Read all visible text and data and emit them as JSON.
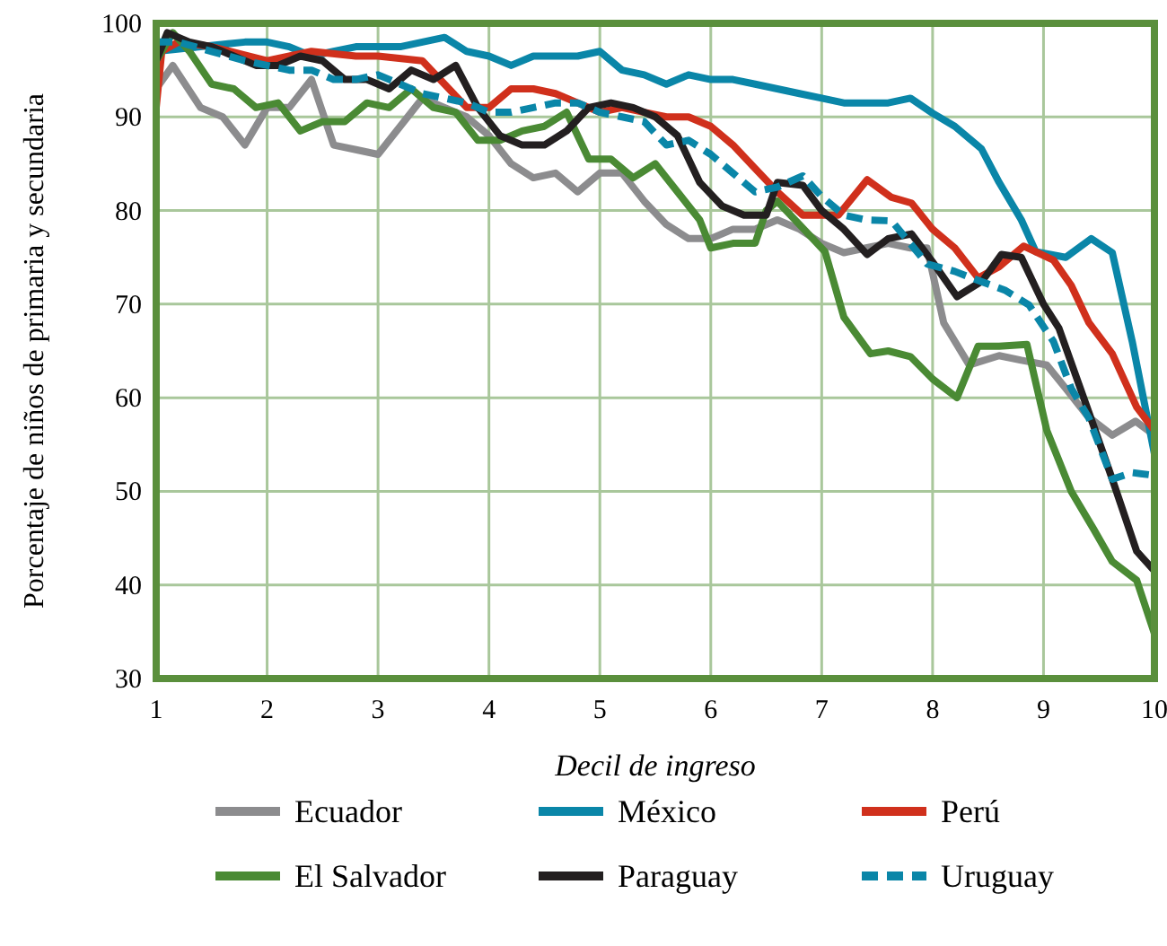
{
  "chart_data": {
    "type": "line",
    "xlabel": "Decil de ingreso",
    "ylabel": "Porcentaje de niños de primaria y secundaria",
    "xlim": [
      1,
      10
    ],
    "xticks": [
      1,
      2,
      3,
      4,
      5,
      6,
      7,
      8,
      9,
      10
    ],
    "ylim": [
      30,
      100
    ],
    "yticks": [
      30,
      40,
      50,
      60,
      70,
      80,
      90,
      100
    ],
    "grid": true,
    "legend": "bottom",
    "marker": "none",
    "series": [
      {
        "name": "Ecuador",
        "color": "#8c8c8e",
        "line_style": "solid",
        "x": [
          1,
          1.15,
          1.4,
          1.6,
          1.8,
          2.0,
          2.2,
          2.4,
          2.6,
          2.8,
          3.0,
          3.2,
          3.4,
          3.6,
          3.8,
          4.0,
          4.2,
          4.4,
          4.6,
          4.8,
          5.0,
          5.2,
          5.4,
          5.6,
          5.8,
          6.0,
          6.2,
          6.4,
          6.6,
          6.8,
          7.0,
          7.2,
          7.4,
          7.6,
          7.8,
          7.95,
          8.1,
          8.33,
          8.6,
          8.8,
          9.03,
          9.2,
          9.4,
          9.62,
          9.83,
          10
        ],
        "values": [
          93,
          95.5,
          91,
          90,
          87,
          91,
          91,
          94,
          87,
          86.5,
          86,
          89,
          92,
          91,
          90,
          88,
          85,
          83.5,
          84,
          82,
          84,
          84,
          81,
          78.5,
          77,
          77,
          78,
          78,
          79,
          78,
          76.5,
          75.5,
          76,
          76.5,
          76,
          76,
          68,
          63.5,
          64.5,
          64,
          63.5,
          61,
          58,
          56,
          57.5,
          56
        ]
      },
      {
        "name": "México",
        "color": "#0a86a8",
        "line_style": "solid",
        "x": [
          1,
          1.4,
          1.8,
          2.0,
          2.2,
          2.4,
          2.6,
          2.8,
          3.0,
          3.2,
          3.4,
          3.6,
          3.8,
          4.0,
          4.2,
          4.4,
          4.6,
          4.8,
          5.0,
          5.2,
          5.4,
          5.6,
          5.8,
          6.0,
          6.2,
          6.4,
          6.6,
          6.8,
          7.0,
          7.2,
          7.4,
          7.6,
          7.8,
          8.0,
          8.2,
          8.44,
          8.6,
          8.8,
          8.93,
          9.2,
          9.43,
          9.62,
          9.8,
          10
        ],
        "values": [
          97,
          97.5,
          98,
          98,
          97.5,
          96.5,
          97,
          97.5,
          97.5,
          97.5,
          98,
          98.5,
          97,
          96.5,
          95.5,
          96.5,
          96.5,
          96.5,
          97,
          95,
          94.5,
          93.5,
          94.5,
          94,
          94,
          93.5,
          93,
          92.5,
          92,
          91.5,
          91.5,
          91.5,
          92,
          90.4,
          89,
          86.6,
          83,
          79,
          75.6,
          75,
          77,
          75.5,
          66,
          54
        ]
      },
      {
        "name": "Perú",
        "color": "#d0301c",
        "line_style": "solid",
        "x": [
          1,
          1.05,
          1.2,
          1.5,
          2.0,
          2.4,
          2.8,
          3.0,
          3.4,
          3.8,
          4.0,
          4.2,
          4.4,
          4.6,
          4.8,
          5.0,
          5.2,
          5.4,
          5.6,
          5.8,
          6.0,
          6.2,
          6.4,
          6.6,
          6.83,
          7.15,
          7.41,
          7.63,
          7.81,
          8.0,
          8.2,
          8.41,
          8.6,
          8.82,
          9.09,
          9.25,
          9.41,
          9.62,
          9.84,
          10
        ],
        "values": [
          91,
          97,
          98,
          97.5,
          96,
          97,
          96.5,
          96.5,
          96,
          91,
          91,
          93,
          93,
          92.5,
          91.5,
          90.5,
          91,
          90.5,
          90,
          90,
          89,
          87,
          84.5,
          82,
          79.5,
          79.5,
          83.3,
          81.4,
          80.8,
          78,
          76,
          72.8,
          74,
          76.2,
          74.7,
          72,
          68,
          64.7,
          59,
          56.5
        ]
      },
      {
        "name": "El Salvador",
        "color": "#4a8a34",
        "line_style": "solid",
        "x": [
          1,
          1.15,
          1.3,
          1.5,
          1.7,
          1.9,
          2.1,
          2.3,
          2.5,
          2.7,
          2.9,
          3.1,
          3.3,
          3.5,
          3.7,
          3.9,
          4.1,
          4.3,
          4.5,
          4.7,
          4.9,
          5.1,
          5.3,
          5.5,
          5.7,
          5.9,
          6.0,
          6.2,
          6.4,
          6.5,
          6.6,
          6.8,
          7.03,
          7.2,
          7.44,
          7.6,
          7.8,
          8.0,
          8.22,
          8.41,
          8.6,
          8.85,
          9.03,
          9.25,
          9.45,
          9.62,
          9.84,
          10
        ],
        "values": [
          96,
          99,
          97,
          93.5,
          93,
          91,
          91.5,
          88.5,
          89.5,
          89.5,
          91.5,
          91,
          93,
          91,
          90.5,
          87.5,
          87.5,
          88.5,
          89,
          90.5,
          85.5,
          85.5,
          83.5,
          85,
          82,
          79,
          76,
          76.5,
          76.5,
          80,
          81,
          78.5,
          75.6,
          68.6,
          64.7,
          65,
          64.4,
          62,
          60,
          65.5,
          65.5,
          65.7,
          56.5,
          50,
          46,
          42.5,
          40.5,
          34.8
        ]
      },
      {
        "name": "Paraguay",
        "color": "#231f20",
        "line_style": "solid",
        "x": [
          1,
          1.1,
          1.3,
          1.5,
          1.7,
          1.9,
          2.1,
          2.3,
          2.5,
          2.7,
          2.9,
          3.1,
          3.3,
          3.5,
          3.7,
          3.9,
          4.1,
          4.3,
          4.5,
          4.7,
          4.9,
          5.1,
          5.3,
          5.5,
          5.7,
          5.9,
          6.1,
          6.3,
          6.5,
          6.6,
          6.83,
          7.0,
          7.2,
          7.41,
          7.6,
          7.81,
          8.0,
          8.22,
          8.45,
          8.62,
          8.8,
          9.0,
          9.14,
          9.41,
          9.62,
          9.84,
          10
        ],
        "values": [
          96,
          99,
          98,
          97.5,
          96.5,
          95.5,
          95.5,
          96.5,
          96,
          94,
          94,
          93,
          95,
          94,
          95.5,
          91,
          88,
          87,
          87,
          88.5,
          91,
          91.5,
          91,
          90,
          88,
          83,
          80.5,
          79.5,
          79.5,
          83,
          82.7,
          80,
          78,
          75.3,
          77,
          77.5,
          74.5,
          70.8,
          72.5,
          75.3,
          75,
          70,
          67.4,
          58.4,
          51.3,
          43.6,
          41.5
        ]
      },
      {
        "name": "Uruguay",
        "color": "#0a86a8",
        "line_style": "dashed",
        "x": [
          1,
          1.2,
          1.5,
          1.8,
          2.0,
          2.2,
          2.4,
          2.6,
          2.8,
          3.0,
          3.2,
          3.4,
          3.6,
          3.8,
          4.0,
          4.2,
          4.4,
          4.6,
          4.8,
          5.0,
          5.2,
          5.4,
          5.6,
          5.8,
          6.0,
          6.2,
          6.4,
          6.6,
          6.83,
          7.0,
          7.2,
          7.4,
          7.63,
          7.95,
          8.2,
          8.44,
          8.65,
          8.87,
          9.09,
          9.25,
          9.41,
          9.62,
          9.8,
          10
        ],
        "values": [
          98,
          98,
          97,
          96,
          95.5,
          95,
          95,
          94,
          94,
          94.5,
          93.5,
          92.5,
          92,
          91.5,
          90.5,
          90.5,
          91,
          91.5,
          91.5,
          90.5,
          90,
          89.5,
          87,
          87.5,
          86,
          84,
          82,
          82.5,
          83.7,
          81.5,
          79.5,
          79,
          78.9,
          74.3,
          73.5,
          72.4,
          71.5,
          69.9,
          66,
          61,
          57.8,
          51.3,
          52,
          51.7
        ]
      }
    ]
  }
}
